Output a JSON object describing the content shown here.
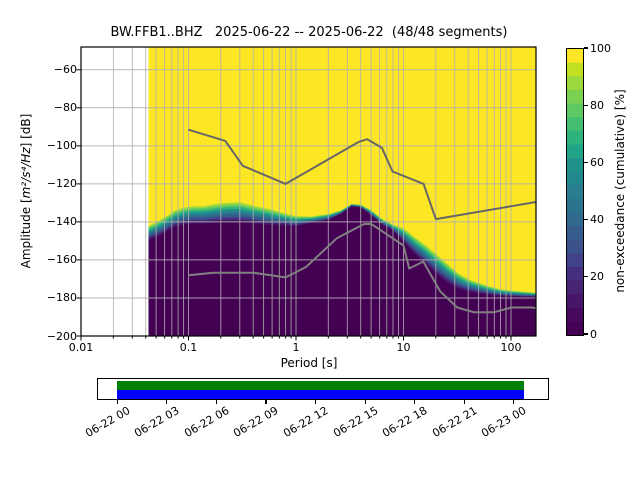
{
  "title": "BW.FFB1..BHZ   2025-06-22 -- 2025-06-22  (48/48 segments)",
  "axes": {
    "xlabel": "Period [s]",
    "ylabel_prefix": "Amplitude [",
    "ylabel_math": "m²/s⁴/Hz",
    "ylabel_suffix": "] [dB]",
    "x_tick_labels": [
      "0.01",
      "0.1",
      "1",
      "10",
      "100"
    ],
    "y_tick_labels": [
      "−60",
      "−80",
      "−100",
      "−120",
      "−140",
      "−160",
      "−180",
      "−200"
    ]
  },
  "colorbar": {
    "label": "non-exceedance (cumulative) [%]",
    "tick_labels": [
      "0",
      "20",
      "40",
      "60",
      "80",
      "100"
    ],
    "tick_values": [
      0,
      20,
      40,
      60,
      80,
      100
    ],
    "colormap": "viridis",
    "colors": [
      "#440154",
      "#47095d",
      "#471669",
      "#472373",
      "#46307e",
      "#414287",
      "#3b528b",
      "#365c8d",
      "#31688e",
      "#2c738e",
      "#287d8e",
      "#23888e",
      "#1f938b",
      "#20a386",
      "#2eb37c",
      "#44bf70",
      "#5ec962",
      "#7ad151",
      "#9bd93c",
      "#c2df23",
      "#fde725"
    ]
  },
  "chart_data": {
    "type": "heatmap",
    "title": "BW.FFB1..BHZ   2025-06-22 -- 2025-06-22  (48/48 segments)",
    "xlabel": "Period [s]",
    "ylabel": "Amplitude [m²/s⁴/Hz] [dB]",
    "xscale": "log",
    "xlim": [
      0.01,
      171
    ],
    "ylim": [
      -200,
      -48
    ],
    "x_tick_values": [
      0.01,
      0.1,
      1,
      10,
      100
    ],
    "y_tick_values": [
      -60,
      -80,
      -100,
      -120,
      -140,
      -160,
      -180,
      -200
    ],
    "grid": true,
    "grid_color": "#b0b0b0",
    "colorbar_label": "non-exceedance (cumulative) [%]",
    "colorbar_range": [
      0,
      100
    ],
    "histogram": {
      "periods": [
        0.0425,
        0.055,
        0.065,
        0.075,
        0.09,
        0.11,
        0.14,
        0.18,
        0.24,
        0.3,
        0.42,
        0.6,
        0.8,
        1.0,
        1.4,
        2.0,
        2.6,
        3.3,
        4.0,
        5.0,
        6.3,
        7.9,
        10,
        12.6,
        15.8,
        20,
        25,
        32,
        40,
        50,
        63,
        79,
        100,
        126,
        171
      ],
      "db_at_100pct": [
        -141.5,
        -138.0,
        -135.5,
        -133.0,
        -131.5,
        -130.8,
        -130.7,
        -129.5,
        -128.8,
        -128.6,
        -130.7,
        -132.7,
        -135.0,
        -136.4,
        -136.8,
        -135.5,
        -133.8,
        -130.4,
        -130.8,
        -133.5,
        -138.0,
        -141.0,
        -142.6,
        -147.0,
        -151.0,
        -155.7,
        -160.5,
        -166.0,
        -169.5,
        -171.5,
        -173.5,
        -175.0,
        -175.8,
        -176.3,
        -177.0
      ],
      "db_at_0pct": [
        -149.5,
        -147.0,
        -144.5,
        -142.6,
        -141.5,
        -140.8,
        -140.8,
        -140.3,
        -140.0,
        -140.0,
        -140.8,
        -141.8,
        -142.0,
        -142.3,
        -140.5,
        -139.1,
        -136.0,
        -131.8,
        -132.5,
        -136.5,
        -141.5,
        -144.4,
        -150.5,
        -156.5,
        -161.5,
        -167.1,
        -171.5,
        -175.0,
        -176.5,
        -177.6,
        -178.3,
        -179.0,
        -179.2,
        -179.4,
        -179.5
      ]
    },
    "noise_models": {
      "nhnm_db_by_period": [
        [
          0.1,
          -91.5
        ],
        [
          0.22,
          -97.4
        ],
        [
          0.32,
          -110.5
        ],
        [
          0.8,
          -120.0
        ],
        [
          3.8,
          -98.0
        ],
        [
          4.6,
          -96.5
        ],
        [
          6.3,
          -101.0
        ],
        [
          7.9,
          -113.5
        ],
        [
          15.4,
          -120.0
        ],
        [
          20.0,
          -138.5
        ],
        [
          171,
          -129.5
        ]
      ],
      "nlnm_db_by_period": [
        [
          0.1,
          -168.0
        ],
        [
          0.17,
          -166.7
        ],
        [
          0.4,
          -166.7
        ],
        [
          0.8,
          -169.2
        ],
        [
          1.24,
          -163.7
        ],
        [
          2.4,
          -148.6
        ],
        [
          4.3,
          -141.1
        ],
        [
          5.0,
          -141.1
        ],
        [
          6.0,
          -144.0
        ],
        [
          10.0,
          -152.4
        ],
        [
          11.3,
          -164.5
        ],
        [
          15.3,
          -160.8
        ],
        [
          21.9,
          -176.5
        ],
        [
          31.6,
          -185.0
        ],
        [
          45.0,
          -187.5
        ],
        [
          70.0,
          -187.5
        ],
        [
          101.0,
          -185.0
        ],
        [
          154.0,
          -185.0
        ],
        [
          171.0,
          -185.3
        ]
      ],
      "nhnm_color": "#666666",
      "nlnm_color": "#808080"
    }
  },
  "timeline": {
    "tick_labels": [
      "06-22 00",
      "06-22 03",
      "06-22 06",
      "06-22 09",
      "06-22 12",
      "06-22 15",
      "06-22 18",
      "06-22 21",
      "06-23 00"
    ],
    "used_color": "#008000",
    "data_color": "#0000ff"
  }
}
